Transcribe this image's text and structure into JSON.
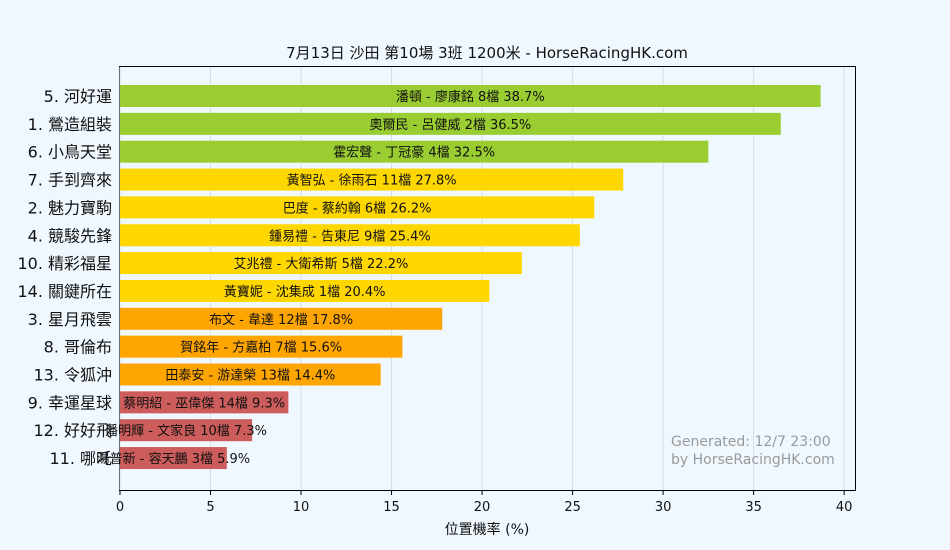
{
  "chart_data": {
    "type": "bar",
    "orientation": "horizontal",
    "title": "7月13日  沙田  第10場  3班  1200米 - HorseRacingHK.com",
    "xlabel": "位置機率 (%)",
    "ylabel": "",
    "xlim": [
      0,
      40.6
    ],
    "xticks": [
      0,
      5,
      10,
      15,
      20,
      25,
      30,
      35,
      40
    ],
    "grid": "vertical",
    "watermark": [
      "Generated: 12/7 23:00",
      "by HorseRacingHK.com"
    ],
    "colors": {
      "green": "#9acd32",
      "yellow": "#ffd700",
      "orange": "#ffa500",
      "red": "#cd5c5c",
      "background": "#f0f8ff"
    },
    "bars": [
      {
        "category": "5. 河好運",
        "value": 38.7,
        "label": "潘頓 - 廖康銘 8檔  38.7%",
        "color": "#9acd32"
      },
      {
        "category": "1. 鶯造組裝",
        "value": 36.5,
        "label": "奧爾民 - 呂健威 2檔  36.5%",
        "color": "#9acd32"
      },
      {
        "category": "6. 小鳥天堂",
        "value": 32.5,
        "label": "霍宏聲 - 丁冠豪 4檔  32.5%",
        "color": "#9acd32"
      },
      {
        "category": "7. 手到齊來",
        "value": 27.8,
        "label": "黃智弘 - 徐雨石 11檔  27.8%",
        "color": "#ffd700"
      },
      {
        "category": "2. 魅力寶駒",
        "value": 26.2,
        "label": "巴度 - 蔡約翰 6檔  26.2%",
        "color": "#ffd700"
      },
      {
        "category": "4. 競駿先鋒",
        "value": 25.4,
        "label": "鍾易禮 - 告東尼 9檔  25.4%",
        "color": "#ffd700"
      },
      {
        "category": "10. 精彩福星",
        "value": 22.2,
        "label": "艾兆禮 - 大衛希斯 5檔  22.2%",
        "color": "#ffd700"
      },
      {
        "category": "14. 關鍵所在",
        "value": 20.4,
        "label": "黃寶妮 - 沈集成 1檔  20.4%",
        "color": "#ffd700"
      },
      {
        "category": "3. 星月飛雲",
        "value": 17.8,
        "label": "布文 - 韋達 12檔  17.8%",
        "color": "#ffa500"
      },
      {
        "category": "8. 哥倫布",
        "value": 15.6,
        "label": "賀銘年 - 方嘉柏 7檔  15.6%",
        "color": "#ffa500"
      },
      {
        "category": "13. 令狐沖",
        "value": 14.4,
        "label": "田泰安 - 游達榮 13檔  14.4%",
        "color": "#ffa500"
      },
      {
        "category": "9. 幸運星球",
        "value": 9.3,
        "label": "蔡明紹 - 巫偉傑 14檔  9.3%",
        "color": "#cd5c5c"
      },
      {
        "category": "12. 好好飛",
        "value": 7.3,
        "label": "潘明輝 - 文家良 10檔  7.3%",
        "color": "#cd5c5c"
      },
      {
        "category": "11. 哪吒",
        "value": 5.9,
        "label": "湯普新 - 容天鵬 3檔  5.9%",
        "color": "#cd5c5c"
      }
    ]
  }
}
